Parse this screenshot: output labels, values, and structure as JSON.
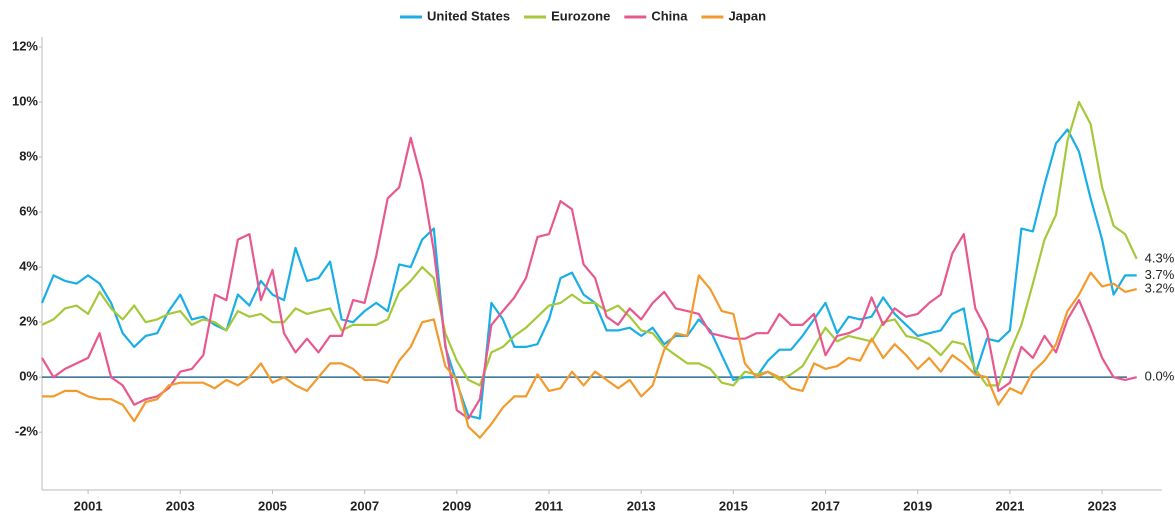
{
  "chart_data": {
    "type": "line",
    "x": [
      2000,
      2000.25,
      2000.5,
      2000.75,
      2001,
      2001.25,
      2001.5,
      2001.75,
      2002,
      2002.25,
      2002.5,
      2002.75,
      2003,
      2003.25,
      2003.5,
      2003.75,
      2004,
      2004.25,
      2004.5,
      2004.75,
      2005,
      2005.25,
      2005.5,
      2005.75,
      2006,
      2006.25,
      2006.5,
      2006.75,
      2007,
      2007.25,
      2007.5,
      2007.75,
      2008,
      2008.25,
      2008.5,
      2008.75,
      2009,
      2009.25,
      2009.5,
      2009.75,
      2010,
      2010.25,
      2010.5,
      2010.75,
      2011,
      2011.25,
      2011.5,
      2011.75,
      2012,
      2012.25,
      2012.5,
      2012.75,
      2013,
      2013.25,
      2013.5,
      2013.75,
      2014,
      2014.25,
      2014.5,
      2014.75,
      2015,
      2015.25,
      2015.5,
      2015.75,
      2016,
      2016.25,
      2016.5,
      2016.75,
      2017,
      2017.25,
      2017.5,
      2017.75,
      2018,
      2018.25,
      2018.5,
      2018.75,
      2019,
      2019.25,
      2019.5,
      2019.75,
      2020,
      2020.25,
      2020.5,
      2020.75,
      2021,
      2021.25,
      2021.5,
      2021.75,
      2022,
      2022.25,
      2022.5,
      2022.75,
      2023,
      2023.25,
      2023.5,
      2023.75
    ],
    "series": [
      {
        "name": "United States",
        "color": "#1aaee6",
        "end_label": "3.7%",
        "values": [
          2.7,
          3.7,
          3.5,
          3.4,
          3.7,
          3.4,
          2.7,
          1.6,
          1.1,
          1.5,
          1.6,
          2.4,
          3.0,
          2.1,
          2.2,
          1.9,
          1.7,
          3.0,
          2.6,
          3.5,
          3.0,
          2.8,
          4.7,
          3.5,
          3.6,
          4.2,
          2.1,
          2.0,
          2.4,
          2.7,
          2.4,
          4.1,
          4.0,
          5.0,
          5.4,
          1.1,
          -0.2,
          -1.4,
          -1.5,
          2.7,
          2.1,
          1.1,
          1.1,
          1.2,
          2.1,
          3.6,
          3.8,
          3.0,
          2.7,
          1.7,
          1.7,
          1.8,
          1.5,
          1.8,
          1.2,
          1.5,
          1.5,
          2.1,
          1.7,
          0.8,
          -0.1,
          0.0,
          0.0,
          0.6,
          1.0,
          1.0,
          1.5,
          2.1,
          2.7,
          1.6,
          2.2,
          2.1,
          2.2,
          2.9,
          2.3,
          1.9,
          1.5,
          1.6,
          1.7,
          2.3,
          2.5,
          0.1,
          1.4,
          1.3,
          1.7,
          5.4,
          5.3,
          7.0,
          8.5,
          9.0,
          8.2,
          6.5,
          5.0,
          3.0,
          3.7,
          3.7
        ]
      },
      {
        "name": "Eurozone",
        "color": "#a5c93a",
        "end_label": "4.3%",
        "values": [
          1.9,
          2.1,
          2.5,
          2.6,
          2.3,
          3.1,
          2.5,
          2.1,
          2.6,
          2.0,
          2.1,
          2.3,
          2.4,
          1.9,
          2.1,
          2.0,
          1.7,
          2.4,
          2.2,
          2.3,
          2.0,
          2.0,
          2.5,
          2.3,
          2.4,
          2.5,
          1.7,
          1.9,
          1.9,
          1.9,
          2.1,
          3.1,
          3.5,
          4.0,
          3.6,
          1.6,
          0.6,
          -0.1,
          -0.3,
          0.9,
          1.1,
          1.5,
          1.8,
          2.2,
          2.6,
          2.7,
          3.0,
          2.7,
          2.7,
          2.4,
          2.6,
          2.2,
          1.7,
          1.6,
          1.1,
          0.8,
          0.5,
          0.5,
          0.3,
          -0.2,
          -0.3,
          0.2,
          0.1,
          0.2,
          -0.1,
          0.1,
          0.4,
          1.1,
          1.8,
          1.3,
          1.5,
          1.4,
          1.3,
          2.0,
          2.1,
          1.5,
          1.4,
          1.2,
          0.8,
          1.3,
          1.2,
          0.3,
          -0.3,
          -0.3,
          0.9,
          1.9,
          3.4,
          5.0,
          5.9,
          8.6,
          10.0,
          9.2,
          6.9,
          5.5,
          5.2,
          4.3
        ]
      },
      {
        "name": "China",
        "color": "#e8588e",
        "end_label": "0.0%",
        "values": [
          0.7,
          0.0,
          0.3,
          0.5,
          0.7,
          1.6,
          0.0,
          -0.3,
          -1.0,
          -0.8,
          -0.7,
          -0.4,
          0.2,
          0.3,
          0.8,
          3.0,
          2.8,
          5.0,
          5.2,
          2.8,
          3.9,
          1.6,
          0.9,
          1.4,
          0.9,
          1.5,
          1.5,
          2.8,
          2.7,
          4.4,
          6.5,
          6.9,
          8.7,
          7.1,
          4.6,
          1.2,
          -1.2,
          -1.5,
          -0.8,
          1.9,
          2.4,
          2.9,
          3.6,
          5.1,
          5.2,
          6.4,
          6.1,
          4.1,
          3.6,
          2.2,
          1.9,
          2.5,
          2.1,
          2.7,
          3.1,
          2.5,
          2.4,
          2.3,
          1.6,
          1.5,
          1.4,
          1.4,
          1.6,
          1.6,
          2.3,
          1.9,
          1.9,
          2.3,
          0.8,
          1.5,
          1.6,
          1.8,
          2.9,
          1.9,
          2.5,
          2.2,
          2.3,
          2.7,
          3.0,
          4.5,
          5.2,
          2.5,
          1.7,
          -0.5,
          -0.2,
          1.1,
          0.7,
          1.5,
          0.9,
          2.1,
          2.8,
          1.8,
          0.7,
          0.0,
          -0.1,
          0.0
        ]
      },
      {
        "name": "Japan",
        "color": "#f39a2d",
        "end_label": "3.2%",
        "values": [
          -0.7,
          -0.7,
          -0.5,
          -0.5,
          -0.7,
          -0.8,
          -0.8,
          -1.0,
          -1.6,
          -0.9,
          -0.8,
          -0.3,
          -0.2,
          -0.2,
          -0.2,
          -0.4,
          -0.1,
          -0.3,
          0.0,
          0.5,
          -0.2,
          0.0,
          -0.3,
          -0.5,
          0.0,
          0.5,
          0.5,
          0.3,
          -0.1,
          -0.1,
          -0.2,
          0.6,
          1.1,
          2.0,
          2.1,
          0.4,
          -0.1,
          -1.8,
          -2.2,
          -1.7,
          -1.1,
          -0.7,
          -0.7,
          0.1,
          -0.5,
          -0.4,
          0.2,
          -0.3,
          0.2,
          -0.1,
          -0.4,
          -0.1,
          -0.7,
          -0.3,
          1.0,
          1.6,
          1.5,
          3.7,
          3.2,
          2.4,
          2.3,
          0.5,
          0.0,
          0.2,
          0.0,
          -0.4,
          -0.5,
          0.5,
          0.3,
          0.4,
          0.7,
          0.6,
          1.4,
          0.7,
          1.2,
          0.8,
          0.3,
          0.7,
          0.2,
          0.8,
          0.5,
          0.1,
          0.0,
          -1.0,
          -0.4,
          -0.6,
          0.2,
          0.6,
          1.2,
          2.4,
          3.0,
          3.8,
          3.3,
          3.4,
          3.1,
          3.2
        ]
      }
    ],
    "xlim": [
      2000,
      2024.3
    ],
    "xticks": [
      2001,
      2003,
      2005,
      2007,
      2009,
      2011,
      2013,
      2015,
      2017,
      2019,
      2021,
      2023
    ],
    "ylim": [
      -4.1,
      12
    ],
    "yticks": [
      {
        "value": -2,
        "label": "-2%"
      },
      {
        "value": 0,
        "label": "0%"
      },
      {
        "value": 2,
        "label": "2%"
      },
      {
        "value": 4,
        "label": "4%"
      },
      {
        "value": 6,
        "label": "6%"
      },
      {
        "value": 8,
        "label": "8%"
      },
      {
        "value": 10,
        "label": "10%"
      },
      {
        "value": 12,
        "label": "12%"
      }
    ],
    "legend": "top",
    "zero_line_color": "#2e6c8f"
  }
}
